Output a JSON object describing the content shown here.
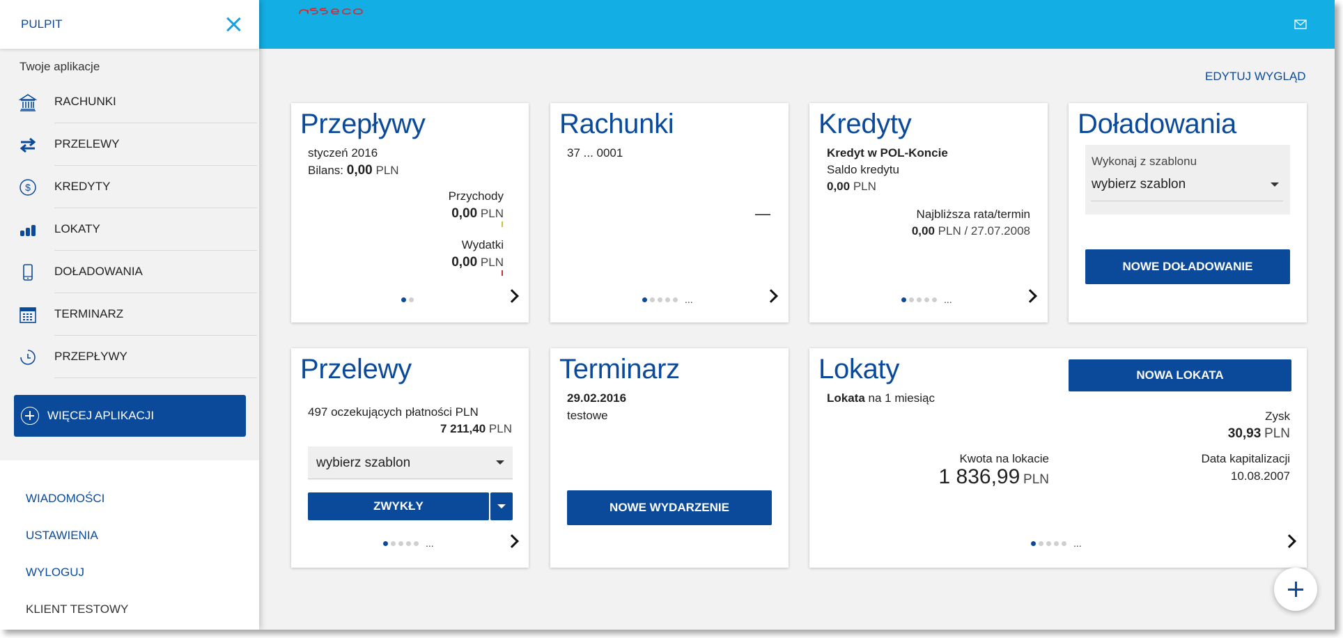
{
  "sidebar": {
    "title": "PULPIT",
    "apps_title": "Twoje aplikacje",
    "items": [
      {
        "label": "RACHUNKI",
        "icon": "bank-icon"
      },
      {
        "label": "PRZELEWY",
        "icon": "transfer-arrows-icon"
      },
      {
        "label": "KREDYTY",
        "icon": "dollar-circle-icon"
      },
      {
        "label": "LOKATY",
        "icon": "coin-stacks-icon"
      },
      {
        "label": "DOŁADOWANIA",
        "icon": "phone-icon"
      },
      {
        "label": "TERMINARZ",
        "icon": "calendar-icon"
      },
      {
        "label": "PRZEPŁYWY",
        "icon": "clock-icon"
      }
    ],
    "more_label": "WIĘCEJ APLIKACJI",
    "links": [
      "WIADOMOŚCI",
      "USTAWIENIA",
      "WYLOGUJ"
    ],
    "client": "KLIENT TESTOWY"
  },
  "header": {
    "logo": "asseco",
    "edit_label": "EDYTUJ WYGLĄD"
  },
  "colors": {
    "primary": "#0b4a9a",
    "topbar": "#13aee4",
    "close": "#1aa0dd"
  },
  "cards": {
    "przeplywy": {
      "title": "Przepływy",
      "period": "styczeń 2016",
      "balance_label": "Bilans:",
      "balance_value": "0,00",
      "currency": "PLN",
      "income_label": "Przychody",
      "income_value": "0,00",
      "expense_label": "Wydatki",
      "expense_value": "0,00"
    },
    "rachunki": {
      "title": "Rachunki",
      "account": "37 ... 0001",
      "balance": "—",
      "ellipsis": "..."
    },
    "kredyty": {
      "title": "Kredyty",
      "name": "Kredyt w POL-Koncie",
      "saldo_label": "Saldo kredytu",
      "saldo_value": "0,00",
      "currency": "PLN",
      "next_label": "Najbliższa rata/termin",
      "next_amount": "0,00",
      "next_rest": "PLN / 27.07.2008",
      "ellipsis": "..."
    },
    "doladowania": {
      "title": "Doładowania",
      "template_label": "Wykonaj z szablonu",
      "template_value": "wybierz szablon",
      "button": "NOWE DOŁADOWANIE"
    },
    "przelewy": {
      "title": "Przelewy",
      "pending": "497 oczekujących płatności PLN",
      "amount": "7 211,40",
      "currency": "PLN",
      "template_value": "wybierz szablon",
      "button": "ZWYKŁY",
      "ellipsis": "..."
    },
    "terminarz": {
      "title": "Terminarz",
      "date": "29.02.2016",
      "event": "testowe",
      "button": "NOWE WYDARZENIE"
    },
    "lokaty": {
      "title": "Lokaty",
      "button": "NOWA LOKATA",
      "name_bold": "Lokata",
      "name_rest": "na 1 miesiąc",
      "profit_label": "Zysk",
      "profit_value": "30,93",
      "currency": "PLN",
      "amount_label": "Kwota na lokacie",
      "amount_value": "1 836,99",
      "cap_label": "Data kapitalizacji",
      "cap_date": "10.08.2007",
      "ellipsis": "..."
    }
  }
}
